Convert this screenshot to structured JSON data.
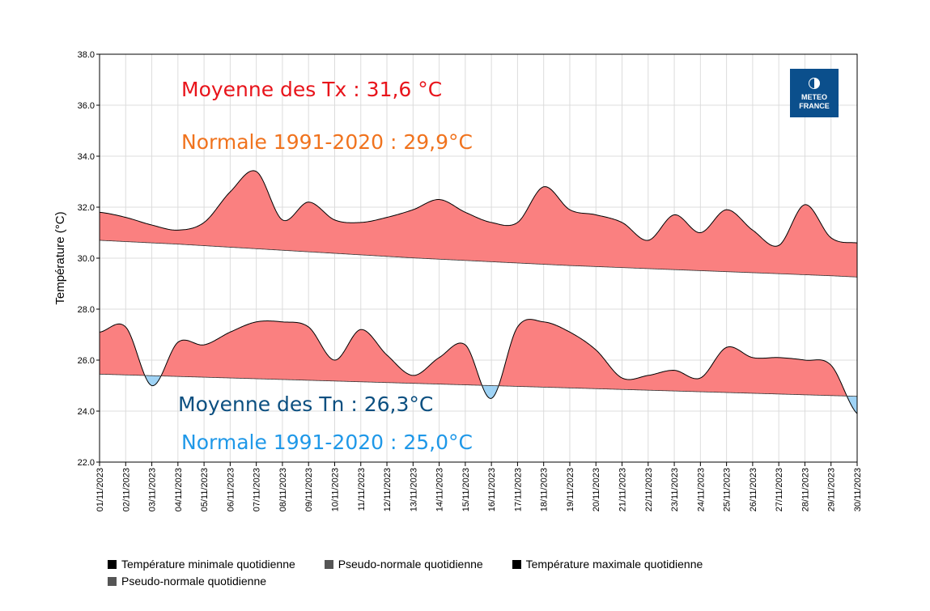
{
  "chart_data": {
    "type": "area",
    "ylabel": "Température (°C)",
    "xlabel": "",
    "ylim": [
      22.0,
      38.0
    ],
    "yticks": [
      "22.0",
      "24.0",
      "26.0",
      "28.0",
      "30.0",
      "32.0",
      "34.0",
      "36.0",
      "38.0"
    ],
    "grid": true,
    "categories": [
      "01/11/2023",
      "02/11/2023",
      "03/11/2023",
      "04/11/2023",
      "05/11/2023",
      "06/11/2023",
      "07/11/2023",
      "08/11/2023",
      "09/11/2023",
      "10/11/2023",
      "11/11/2023",
      "12/11/2023",
      "13/11/2023",
      "14/11/2023",
      "15/11/2023",
      "16/11/2023",
      "17/11/2023",
      "18/11/2023",
      "19/11/2023",
      "20/11/2023",
      "21/11/2023",
      "22/11/2023",
      "23/11/2023",
      "24/11/2023",
      "25/11/2023",
      "26/11/2023",
      "27/11/2023",
      "28/11/2023",
      "29/11/2023",
      "30/11/2023"
    ],
    "series": [
      {
        "name": "Température maximale quotidienne",
        "values": [
          31.8,
          31.6,
          31.3,
          31.1,
          31.4,
          32.6,
          33.4,
          31.5,
          32.2,
          31.5,
          31.4,
          31.6,
          31.9,
          32.3,
          31.8,
          31.4,
          31.4,
          32.8,
          31.9,
          31.7,
          31.4,
          30.7,
          31.7,
          31.0,
          31.9,
          31.1,
          30.5,
          32.1,
          30.8,
          30.6
        ]
      },
      {
        "name": "Pseudo-normale quotidienne",
        "values": [
          30.7,
          30.65,
          30.6,
          30.55,
          30.49,
          30.43,
          30.37,
          30.31,
          30.25,
          30.19,
          30.13,
          30.07,
          30.01,
          29.96,
          29.91,
          29.86,
          29.81,
          29.76,
          29.71,
          29.67,
          29.63,
          29.59,
          29.55,
          29.51,
          29.47,
          29.43,
          29.39,
          29.35,
          29.31,
          29.26
        ]
      },
      {
        "name": "Température minimale quotidienne",
        "values": [
          27.1,
          27.3,
          25.0,
          26.7,
          26.6,
          27.1,
          27.5,
          27.5,
          27.3,
          26.0,
          27.2,
          26.2,
          25.4,
          26.1,
          26.6,
          24.5,
          27.3,
          27.5,
          27.1,
          26.4,
          25.3,
          25.4,
          25.6,
          25.3,
          26.5,
          26.1,
          26.1,
          26.0,
          25.8,
          23.9
        ]
      },
      {
        "name": "Pseudo-normale quotidienne",
        "values": [
          25.45,
          25.42,
          25.39,
          25.36,
          25.33,
          25.3,
          25.27,
          25.24,
          25.21,
          25.18,
          25.15,
          25.12,
          25.09,
          25.06,
          25.03,
          25.0,
          24.97,
          24.94,
          24.91,
          24.88,
          24.85,
          24.82,
          24.79,
          24.76,
          24.73,
          24.7,
          24.67,
          24.64,
          24.61,
          24.58
        ]
      }
    ],
    "annotations": {
      "tx_mean": "Moyenne des Tx : 31,6 °C",
      "tx_normal": "Normale 1991-2020 : 29,9°C",
      "tn_mean": "Moyenne des Tn : 26,3°C",
      "tn_normal": "Normale 1991-2020 : 25,0°C"
    },
    "logo": {
      "line1": "METEO",
      "line2": "FRANCE"
    },
    "legend": [
      {
        "label": "Température minimale quotidienne",
        "color": "#000000"
      },
      {
        "label": "Pseudo-normale quotidienne",
        "color": "#555555"
      },
      {
        "label": "Température maximale quotidienne",
        "color": "#000000"
      },
      {
        "label": "Pseudo-normale quotidienne",
        "color": "#555555"
      }
    ],
    "colors": {
      "above": "#fa8080",
      "below": "#9fd3f5",
      "tx_mean": "#e8141b",
      "tx_normal": "#f0731e",
      "tn_mean": "#0b4f80",
      "tn_normal": "#1f98e8",
      "logo_bg": "#0b4f8c"
    }
  }
}
